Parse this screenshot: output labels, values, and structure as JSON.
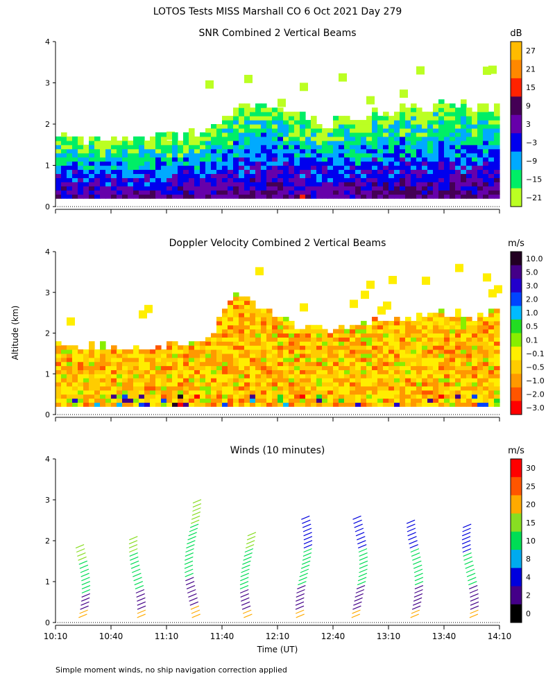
{
  "page_title": "LOTOS Tests MISS Marshall CO   6 Oct 2021 Day 279",
  "footnote": "Simple moment winds, no ship navigation correction applied",
  "shared_ylabel": "Altitude (km)",
  "xlabel": "Time (UT)",
  "x_ticks": [
    "10:10",
    "10:40",
    "11:10",
    "11:40",
    "12:10",
    "12:40",
    "13:10",
    "13:40",
    "14:10"
  ],
  "y_ticks": [
    "0",
    "1",
    "2",
    "3",
    "4"
  ],
  "chart_data": [
    {
      "type": "heatmap",
      "title": "SNR Combined 2 Vertical Beams",
      "units": "dB",
      "x_range": [
        "10:10",
        "14:10"
      ],
      "ylim": [
        0,
        4
      ],
      "colorbar_labels": [
        "27",
        "21",
        "15",
        "9",
        "3",
        "−3",
        "−9",
        "−15",
        "−21"
      ],
      "colorbar_colors": [
        "#ffbb00",
        "#ff8800",
        "#ff2200",
        "#440055",
        "#6600aa",
        "#0000ee",
        "#00aaff",
        "#00ee66",
        "#bbff22"
      ],
      "data_top_km": [
        1.7,
        1.65,
        1.7,
        1.65,
        1.7,
        1.9,
        2.4,
        2.5,
        2.3,
        2.0,
        2.2,
        2.3,
        2.4,
        2.5,
        2.45,
        2.4
      ]
    },
    {
      "type": "heatmap",
      "title": "Doppler Velocity Combined 2 Vertical Beams",
      "units": "m/s",
      "x_range": [
        "10:10",
        "14:10"
      ],
      "ylim": [
        0,
        4
      ],
      "colorbar_labels": [
        "10.0",
        "5.0",
        "3.0",
        "2.0",
        "1.0",
        "0.5",
        "0.1",
        "−0.1",
        "−0.5",
        "−1.0",
        "−2.0",
        "−3.0"
      ],
      "colorbar_colors": [
        "#220022",
        "#440088",
        "#2200cc",
        "#0044ff",
        "#00bbff",
        "#22dd22",
        "#88ee00",
        "#ffee00",
        "#ffcc00",
        "#ff9900",
        "#ff5500",
        "#ff0000"
      ],
      "data_top_km": [
        1.7,
        1.65,
        1.7,
        1.65,
        1.7,
        1.8,
        3.0,
        2.5,
        2.2,
        2.1,
        2.2,
        2.3,
        2.4,
        2.5,
        2.4,
        2.5
      ]
    },
    {
      "type": "scatter",
      "title": "Winds (10 minutes)",
      "units": "m/s",
      "x_range": [
        "10:10",
        "14:10"
      ],
      "ylim": [
        0,
        4
      ],
      "colorbar_labels": [
        "30",
        "25",
        "20",
        "15",
        "10",
        "8",
        "4",
        "2",
        "0"
      ],
      "colorbar_colors": [
        "#ff0000",
        "#ff5500",
        "#ffaa00",
        "#88dd22",
        "#00dd55",
        "#00aaee",
        "#0000dd",
        "#440088",
        "#000000"
      ],
      "profile_times": [
        "10:25",
        "10:55",
        "11:25",
        "11:55",
        "12:25",
        "12:55",
        "13:25",
        "13:55"
      ],
      "profile_tops_km": [
        1.9,
        2.1,
        3.0,
        2.2,
        2.6,
        2.6,
        2.5,
        2.4
      ]
    }
  ]
}
